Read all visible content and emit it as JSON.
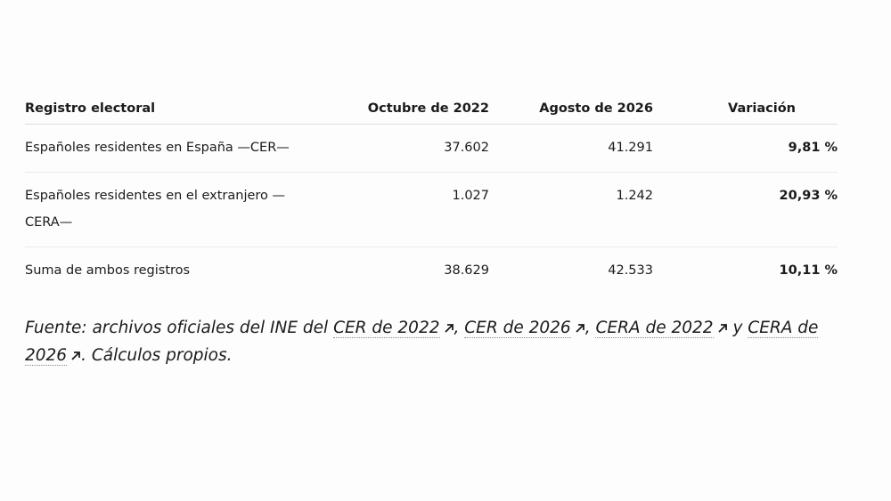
{
  "table": {
    "header": [
      "Registro electoral",
      "Octubre de 2022",
      "Agosto de 2026",
      "Variación"
    ],
    "rows": [
      [
        "Españoles residentes en España —CER—",
        "37.602",
        "41.291",
        "9,81 %"
      ],
      [
        "Españoles residentes en el extranjero —CERA—",
        "1.027",
        "1.242",
        "20,93 %"
      ],
      [
        "Suma de ambos registros",
        "38.629",
        "42.533",
        "10,11 %"
      ]
    ]
  },
  "source": {
    "prefix": "Fuente: archivos oficiales del INE del ",
    "links": [
      "CER de 2022",
      "CER de 2026",
      "CERA de 2022",
      "CERA de 2026"
    ],
    "separators": [
      ", ",
      ", ",
      " y "
    ],
    "suffix": ". Cálculos propios."
  }
}
